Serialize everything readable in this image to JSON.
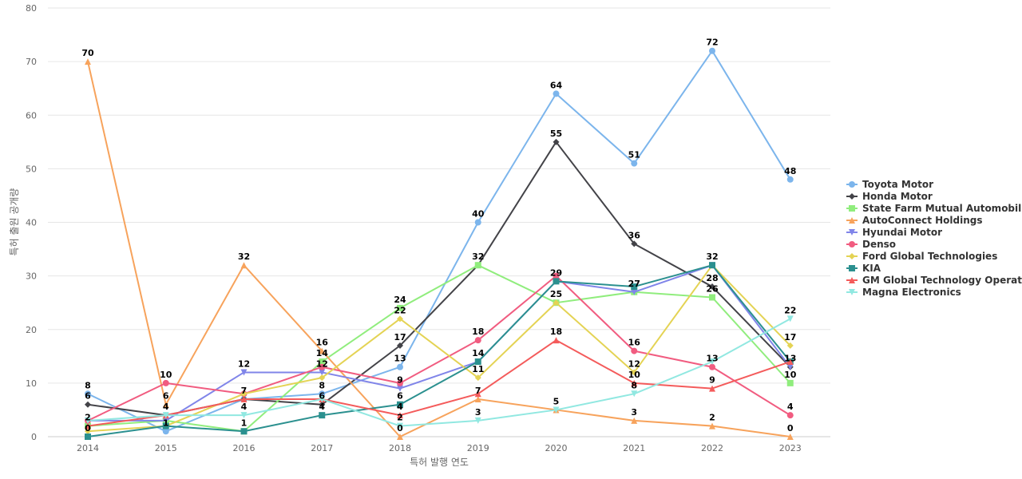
{
  "chart_data": {
    "type": "line",
    "title": "",
    "xlabel": "특허 발행 연도",
    "ylabel": "특허 출원 공개량",
    "ylim": [
      0,
      80
    ],
    "yticks": [
      0,
      10,
      20,
      30,
      40,
      50,
      60,
      70,
      80
    ],
    "grid": "horizontal",
    "legend_position": "right",
    "categories": [
      "2014",
      "2015",
      "2016",
      "2017",
      "2018",
      "2019",
      "2020",
      "2021",
      "2022",
      "2023"
    ],
    "series": [
      {
        "name": "Toyota Motor",
        "color": "#7cb5ec",
        "marker": "circle",
        "values": [
          8,
          1,
          7,
          8,
          13,
          40,
          64,
          51,
          72,
          48
        ]
      },
      {
        "name": "Honda Motor",
        "color": "#434348",
        "marker": "diamond",
        "values": [
          6,
          4,
          7,
          6,
          17,
          32,
          55,
          36,
          28,
          13
        ]
      },
      {
        "name": "State Farm Mutual Automobil...",
        "color": "#90ed7d",
        "marker": "square",
        "values": [
          2,
          3,
          1,
          14,
          24,
          32,
          25,
          27,
          26,
          10
        ]
      },
      {
        "name": "AutoConnect Holdings",
        "color": "#f7a35c",
        "marker": "triangle",
        "values": [
          70,
          6,
          32,
          16,
          0,
          7,
          5,
          3,
          2,
          0
        ]
      },
      {
        "name": "Hyundai Motor",
        "color": "#8085e9",
        "marker": "triangle-down",
        "values": [
          3,
          3,
          12,
          12,
          9,
          14,
          29,
          27,
          32,
          13
        ]
      },
      {
        "name": "Denso",
        "color": "#f15c80",
        "marker": "circle",
        "values": [
          3,
          10,
          8,
          13,
          10,
          18,
          30,
          16,
          13,
          4
        ]
      },
      {
        "name": "Ford Global Technologies",
        "color": "#e4d354",
        "marker": "diamond",
        "values": [
          1,
          2,
          8,
          11,
          22,
          11,
          25,
          12,
          32,
          17
        ]
      },
      {
        "name": "KIA",
        "color": "#2b908f",
        "marker": "square",
        "values": [
          0,
          2,
          1,
          4,
          6,
          14,
          29,
          28,
          32,
          14
        ]
      },
      {
        "name": "GM Global Technology Operat...",
        "color": "#f45b5b",
        "marker": "triangle",
        "values": [
          2,
          4,
          7,
          7,
          4,
          8,
          18,
          10,
          9,
          14
        ]
      },
      {
        "name": "Magna Electronics",
        "color": "#91e8e1",
        "marker": "triangle-down",
        "values": [
          3,
          4,
          4,
          7,
          2,
          3,
          5,
          8,
          14,
          22
        ]
      }
    ],
    "data_labels": [
      {
        "x": "2014",
        "value": 70
      },
      {
        "x": "2014",
        "value": 8
      },
      {
        "x": "2014",
        "value": 6
      },
      {
        "x": "2014",
        "value": 2
      },
      {
        "x": "2014",
        "value": 0
      },
      {
        "x": "2015",
        "value": 10
      },
      {
        "x": "2015",
        "value": 6
      },
      {
        "x": "2015",
        "value": 4
      },
      {
        "x": "2015",
        "value": 1
      },
      {
        "x": "2016",
        "value": 32
      },
      {
        "x": "2016",
        "value": 12
      },
      {
        "x": "2016",
        "value": 7
      },
      {
        "x": "2016",
        "value": 4
      },
      {
        "x": "2016",
        "value": 1
      },
      {
        "x": "2017",
        "value": 16
      },
      {
        "x": "2017",
        "value": 14
      },
      {
        "x": "2017",
        "value": 12
      },
      {
        "x": "2017",
        "value": 8
      },
      {
        "x": "2017",
        "value": 6
      },
      {
        "x": "2017",
        "value": 4
      },
      {
        "x": "2018",
        "value": 24
      },
      {
        "x": "2018",
        "value": 22
      },
      {
        "x": "2018",
        "value": 17
      },
      {
        "x": "2018",
        "value": 13
      },
      {
        "x": "2018",
        "value": 9
      },
      {
        "x": "2018",
        "value": 6
      },
      {
        "x": "2018",
        "value": 4
      },
      {
        "x": "2018",
        "value": 2
      },
      {
        "x": "2018",
        "value": 0
      },
      {
        "x": "2019",
        "value": 40
      },
      {
        "x": "2019",
        "value": 32
      },
      {
        "x": "2019",
        "value": 18
      },
      {
        "x": "2019",
        "value": 14
      },
      {
        "x": "2019",
        "value": 11
      },
      {
        "x": "2019",
        "value": 7
      },
      {
        "x": "2019",
        "value": 3
      },
      {
        "x": "2020",
        "value": 64
      },
      {
        "x": "2020",
        "value": 55
      },
      {
        "x": "2020",
        "value": 29
      },
      {
        "x": "2020",
        "value": 25
      },
      {
        "x": "2020",
        "value": 18
      },
      {
        "x": "2020",
        "value": 5
      },
      {
        "x": "2021",
        "value": 51
      },
      {
        "x": "2021",
        "value": 36
      },
      {
        "x": "2021",
        "value": 27
      },
      {
        "x": "2021",
        "value": 16
      },
      {
        "x": "2021",
        "value": 12
      },
      {
        "x": "2021",
        "value": 10
      },
      {
        "x": "2021",
        "value": 8
      },
      {
        "x": "2021",
        "value": 3
      },
      {
        "x": "2022",
        "value": 72
      },
      {
        "x": "2022",
        "value": 32
      },
      {
        "x": "2022",
        "value": 28
      },
      {
        "x": "2022",
        "value": 26
      },
      {
        "x": "2022",
        "value": 13
      },
      {
        "x": "2022",
        "value": 9
      },
      {
        "x": "2022",
        "value": 2
      },
      {
        "x": "2023",
        "value": 48
      },
      {
        "x": "2023",
        "value": 22
      },
      {
        "x": "2023",
        "value": 17
      },
      {
        "x": "2023",
        "value": 13
      },
      {
        "x": "2023",
        "value": 10
      },
      {
        "x": "2023",
        "value": 4
      },
      {
        "x": "2023",
        "value": 0
      }
    ]
  }
}
